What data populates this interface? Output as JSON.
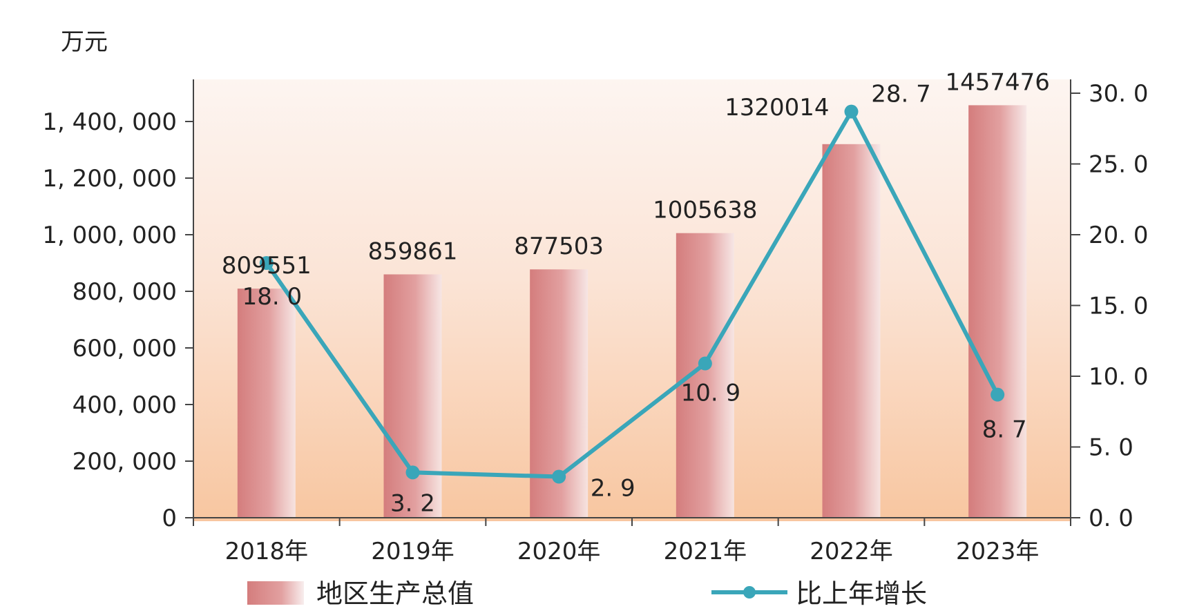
{
  "chart_data": {
    "type": "bar",
    "categories": [
      "2018年",
      "2019年",
      "2020年",
      "2021年",
      "2022年",
      "2023年"
    ],
    "series": [
      {
        "name": "地区生产总值",
        "type": "bar",
        "axis": "left",
        "values": [
          809551,
          859861,
          877503,
          1005638,
          1320014,
          1457476
        ],
        "labels": [
          "809551",
          "859861",
          "877503",
          "1005638",
          "1320014",
          "1457476"
        ]
      },
      {
        "name": "比上年增长",
        "type": "line",
        "axis": "right",
        "values": [
          18.0,
          3.2,
          2.9,
          10.9,
          28.7,
          8.7
        ],
        "labels": [
          "18. 0",
          "3. 2",
          "2. 9",
          "10. 9",
          "28. 7",
          "8. 7"
        ]
      }
    ],
    "left_axis": {
      "unit": "万元",
      "ylim": [
        0,
        1500000
      ],
      "ticks": [
        0,
        200000,
        400000,
        600000,
        800000,
        1000000,
        1200000,
        1400000
      ],
      "tick_labels": [
        "0",
        "200, 000",
        "400, 000",
        "600, 000",
        "800, 000",
        "1, 000, 000",
        "1, 200, 000",
        "1, 400, 000"
      ]
    },
    "right_axis": {
      "ylim": [
        0,
        30
      ],
      "ticks": [
        0,
        5,
        10,
        15,
        20,
        25,
        30
      ],
      "tick_labels": [
        "0. 0",
        "5. 0",
        "10. 0",
        "15. 0",
        "20. 0",
        "25. 0",
        "30. 0"
      ]
    },
    "grid": false,
    "legend_position": "bottom"
  },
  "colors": {
    "bar": "#d98888",
    "line": "#3aa6b9",
    "background_top": "#fdf3ee",
    "background_bottom": "#f9c9a4"
  }
}
